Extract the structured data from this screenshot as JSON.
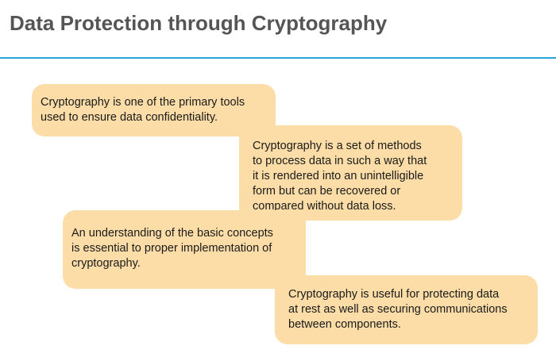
{
  "slide": {
    "title": "Data Protection through Cryptography"
  },
  "colors": {
    "callout_fill": "#fcdda7",
    "title_rule": "#29a6d8",
    "title_text": "#555555"
  },
  "callouts": [
    {
      "lines": [
        "Cryptography is one of the primary tools",
        "used to ensure data confidentiality."
      ]
    },
    {
      "lines": [
        "Cryptography is a set of methods",
        "to process data in such a way that",
        "it is rendered into an unintelligible",
        "form but can be recovered or",
        "compared without data loss."
      ]
    },
    {
      "lines": [
        "An understanding of the basic concepts",
        "is essential to proper implementation of",
        "cryptography."
      ]
    },
    {
      "lines": [
        "Cryptography is useful for protecting data",
        "at rest as well as securing communications",
        "between components."
      ]
    }
  ]
}
